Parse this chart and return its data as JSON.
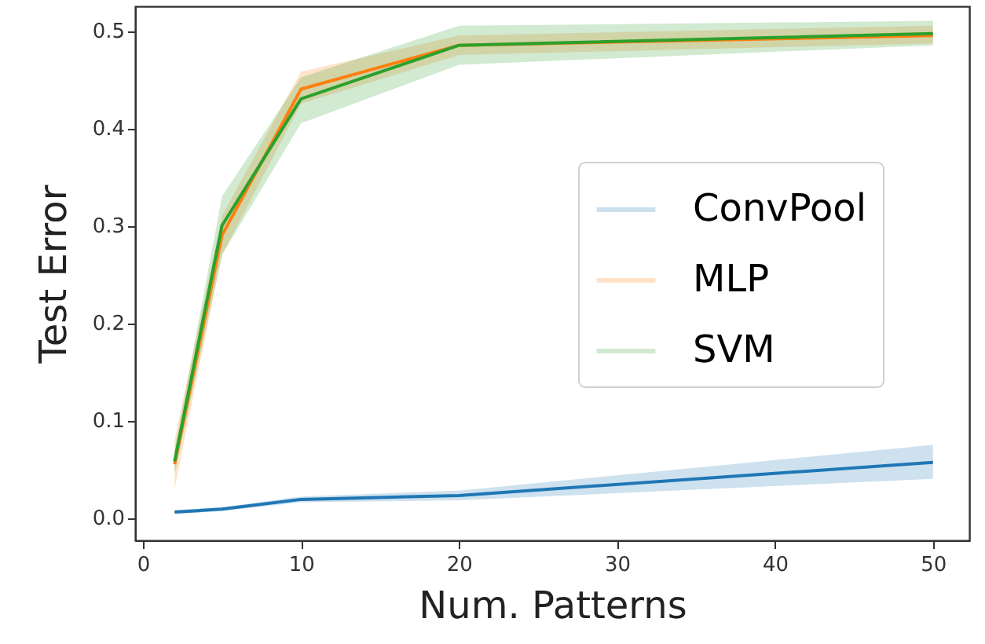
{
  "chart_data": {
    "type": "line",
    "xlabel": "Num. Patterns",
    "ylabel": "Test Error",
    "x": [
      2,
      5,
      10,
      20,
      50
    ],
    "series": [
      {
        "name": "ConvPool",
        "color": "#1f77b4",
        "values": [
          0.006,
          0.009,
          0.019,
          0.023,
          0.057
        ],
        "lower": [
          0.004,
          0.007,
          0.016,
          0.018,
          0.04
        ],
        "upper": [
          0.008,
          0.011,
          0.022,
          0.028,
          0.075
        ]
      },
      {
        "name": "MLP",
        "color": "#ff7f0e",
        "values": [
          0.055,
          0.29,
          0.44,
          0.485,
          0.495
        ],
        "lower": [
          0.03,
          0.27,
          0.425,
          0.475,
          0.487
        ],
        "upper": [
          0.08,
          0.31,
          0.458,
          0.495,
          0.505
        ]
      },
      {
        "name": "SVM",
        "color": "#2ca02c",
        "values": [
          0.058,
          0.3,
          0.43,
          0.485,
          0.497
        ],
        "lower": [
          0.045,
          0.27,
          0.405,
          0.465,
          0.485
        ],
        "upper": [
          0.07,
          0.33,
          0.452,
          0.505,
          0.51
        ]
      }
    ],
    "xlim": [
      -0.5,
      52.3
    ],
    "ylim": [
      -0.023,
      0.525
    ],
    "xticks": [
      0,
      10,
      20,
      30,
      40,
      50
    ],
    "yticks": [
      {
        "value": 0,
        "label": "0.0"
      },
      0.1,
      0.2,
      0.3,
      0.4,
      0.5
    ],
    "legend": "right",
    "grid": false
  }
}
